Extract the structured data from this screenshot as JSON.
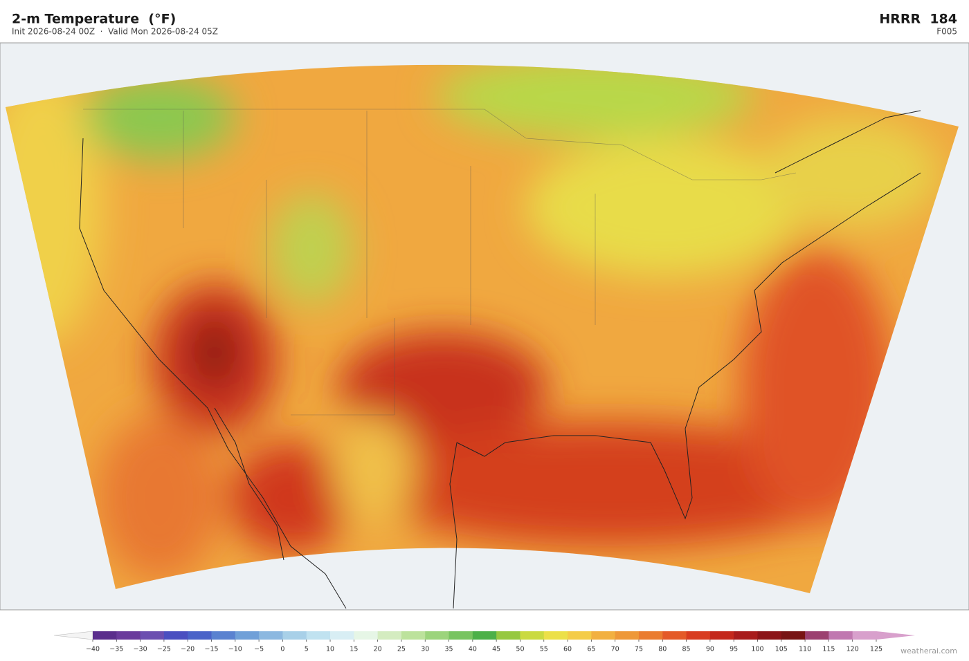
{
  "header": {
    "title": "2-m Temperature  (°F)",
    "subtitle": "Init 2026-08-24 00Z  ·  Valid Mon 2026-08-24 05Z",
    "model": "HRRR  184",
    "forecast_hour": "F005"
  },
  "colorbar": {
    "ticks": [
      {
        "value": -40,
        "label": "−40"
      },
      {
        "value": -35,
        "label": "−35"
      },
      {
        "value": -30,
        "label": "−30"
      },
      {
        "value": -25,
        "label": "−25"
      },
      {
        "value": -20,
        "label": "−20"
      },
      {
        "value": -15,
        "label": "−15"
      },
      {
        "value": -10,
        "label": "−10"
      },
      {
        "value": -5,
        "label": "−5"
      },
      0,
      5,
      10,
      15,
      20,
      25,
      30,
      35,
      40,
      45,
      50,
      55,
      60,
      65,
      70,
      75,
      80,
      85,
      90,
      95,
      100,
      105,
      110,
      115,
      120,
      125
    ],
    "colors": [
      "#5a2d8c",
      "#6a3a9c",
      "#6b4fb0",
      "#4a4fc0",
      "#4a63c8",
      "#5a82d0",
      "#70a0d8",
      "#8cb8e0",
      "#a8d0e8",
      "#c0e2f0",
      "#d8eef4",
      "#e6f6e6",
      "#d4ecc0",
      "#bce29c",
      "#9cd47c",
      "#78c460",
      "#4cb048",
      "#96c840",
      "#cada40",
      "#ece048",
      "#f4cc48",
      "#f2b040",
      "#ee9838",
      "#ea7c30",
      "#e45a28",
      "#d83c20",
      "#c4281c",
      "#a81c1c",
      "#8c1418",
      "#781414",
      "#9c4070",
      "#c078b0",
      "#d8a0cc"
    ],
    "under_color": "#f4f4f4",
    "over_color": "#d8a0cc"
  },
  "attribution": "weatherai.com"
}
